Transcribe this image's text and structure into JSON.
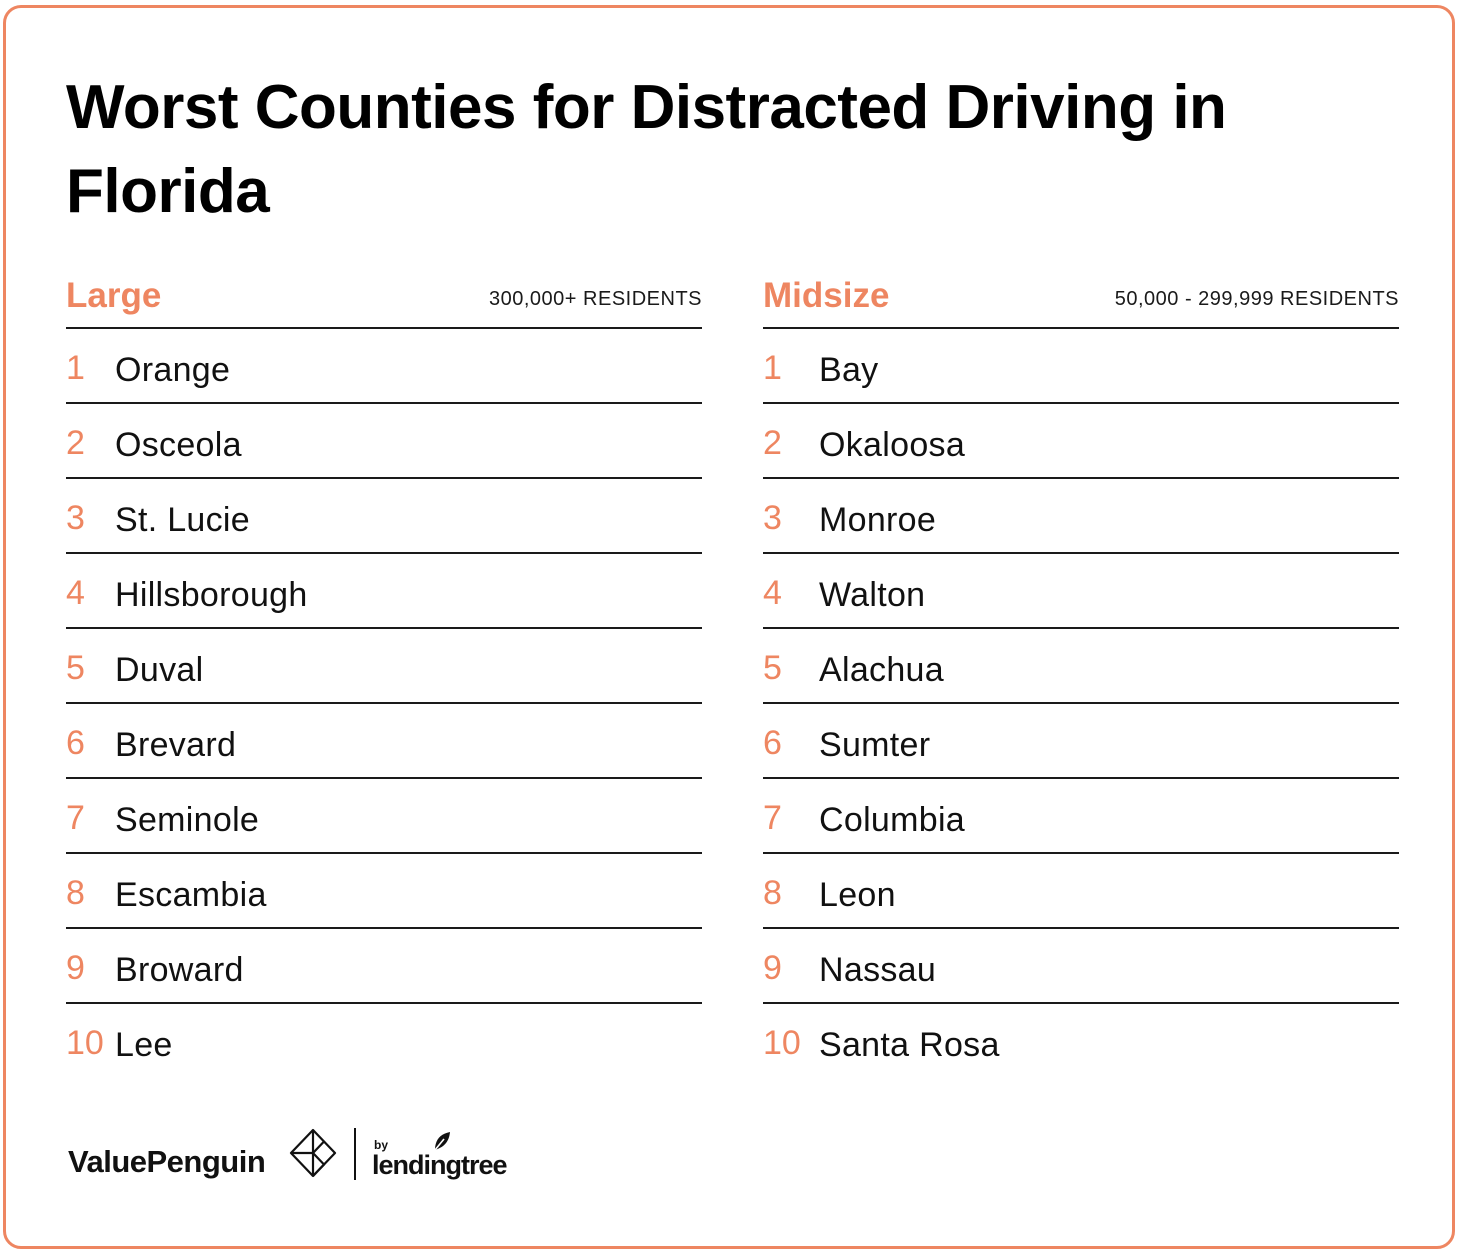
{
  "title": "Worst Counties for Distracted Driving in Florida",
  "columns": [
    {
      "category": "Large",
      "residents": "300,000+ RESIDENTS",
      "counties": [
        {
          "rank": "1",
          "name": "Orange"
        },
        {
          "rank": "2",
          "name": "Osceola"
        },
        {
          "rank": "3",
          "name": "St. Lucie"
        },
        {
          "rank": "4",
          "name": "Hillsborough"
        },
        {
          "rank": "5",
          "name": "Duval"
        },
        {
          "rank": "6",
          "name": "Brevard"
        },
        {
          "rank": "7",
          "name": "Seminole"
        },
        {
          "rank": "8",
          "name": "Escambia"
        },
        {
          "rank": "9",
          "name": "Broward"
        },
        {
          "rank": "10",
          "name": "Lee"
        }
      ]
    },
    {
      "category": "Midsize",
      "residents": "50,000 - 299,999 RESIDENTS",
      "counties": [
        {
          "rank": "1",
          "name": "Bay"
        },
        {
          "rank": "2",
          "name": "Okaloosa"
        },
        {
          "rank": "3",
          "name": "Monroe"
        },
        {
          "rank": "4",
          "name": "Walton"
        },
        {
          "rank": "5",
          "name": "Alachua"
        },
        {
          "rank": "6",
          "name": "Sumter"
        },
        {
          "rank": "7",
          "name": "Columbia"
        },
        {
          "rank": "8",
          "name": "Leon"
        },
        {
          "rank": "9",
          "name": "Nassau"
        },
        {
          "rank": "10",
          "name": "Santa Rosa"
        }
      ]
    }
  ],
  "footer": {
    "brand": "ValuePenguin",
    "brand_icon": "penguin-mark-icon",
    "by": "by",
    "partner": "lendingtree",
    "partner_icon": "leaf-icon"
  },
  "colors": {
    "accent": "#ee8661",
    "text": "#111111",
    "rule": "#1a1a1a",
    "background": "#ffffff"
  }
}
